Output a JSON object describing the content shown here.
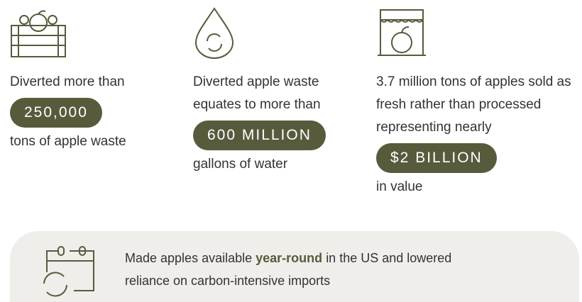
{
  "stats": [
    {
      "before": "Diverted more than",
      "highlight": "250,000",
      "after": "tons of apple waste"
    },
    {
      "before": "Diverted apple waste equates to more than",
      "highlight": "600 MILLION",
      "after": "gallons of water"
    },
    {
      "before": "3.7 million tons of apples sold as fresh rather than processed representing nearly",
      "highlight": "$2 BILLION",
      "after": "in value"
    }
  ],
  "footer": {
    "text_before": "Made apples available",
    "emphasis": "year-round",
    "text_after": "in the US and lowered reliance on carbon-intensive imports"
  }
}
